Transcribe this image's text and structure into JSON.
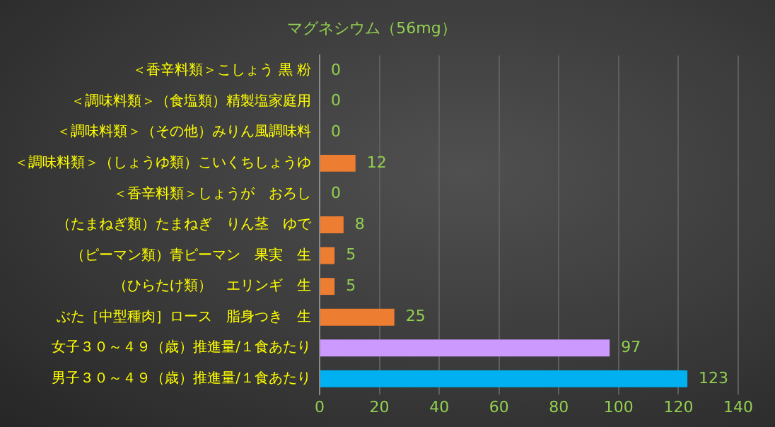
{
  "chart_data": {
    "type": "bar",
    "orientation": "horizontal",
    "title": "マグネシウム（56mg）",
    "categories": [
      "＜香辛料類＞こしょう 黒 粉",
      "＜調味料類＞（食塩類）精製塩家庭用",
      "＜調味料類＞（その他）みりん風調味料",
      "＜調味料類＞（しょうゆ類）こいくちしょうゆ",
      "＜香辛料類＞しょうが　おろし",
      "（たまねぎ類）たまねぎ　りん茎　ゆで",
      "（ピーマン類）青ピーマン　果実　生",
      "（ひらたけ類）　エリンギ　生",
      "ぶた［中型種肉］ロース　脂身つき　生",
      "女子３０～４９（歳）推進量/１食あたり",
      "男子３０～４９（歳）推進量/１食あたり"
    ],
    "values": [
      0,
      0,
      0,
      12,
      0,
      8,
      5,
      5,
      25,
      97,
      123
    ],
    "colors": [
      "#ed7d31",
      "#ed7d31",
      "#ed7d31",
      "#ed7d31",
      "#ed7d31",
      "#ed7d31",
      "#ed7d31",
      "#ed7d31",
      "#ed7d31",
      "#cc99ff",
      "#00b0f0"
    ],
    "xlim": [
      0,
      140
    ],
    "xticks": [
      0,
      20,
      40,
      60,
      80,
      100,
      120,
      140
    ],
    "grid": "x",
    "legend": false,
    "data_labels": true
  }
}
